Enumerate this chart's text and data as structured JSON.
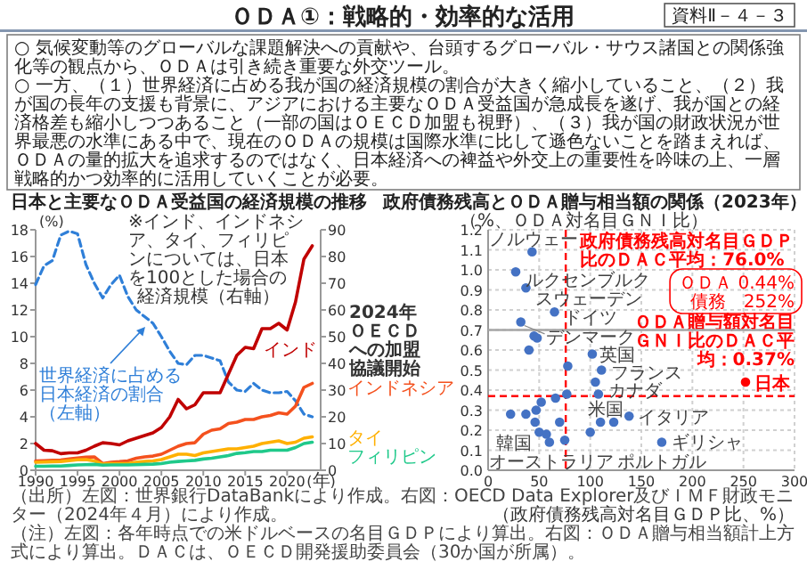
{
  "chart_data": [
    {
      "type": "other",
      "title": "ＯＤＡ①：戦略的・効率的な活用",
      "annotations": [
        "資料Ⅱ－４－３",
        "○ 気候変動等のグローバルな課題解決への貢献や、台頭するグローバル・サウス諸国との関係強化等の観点から、ＯＤＡは引き続き重要な外交ツール。",
        "○ 一方、（１）世界経済に占める我が国の経済規模の割合が大きく縮小していること、（２）我が国の長年の支援も背景に、アジアにおける主要なＯＤＡ受益国が急成長を遂げ、我が国との経済格差も縮小しつつあること（一部の国はＯＥＣＤ加盟も視野）、（３）我が国の財政状況が世界最悪の水準にある中で、現在のＯＤＡの規模は国際水準に比して遜色ないことを踏まえれば、ＯＤＡの量的拡大を追求するのではなく、日本経済への裨益や外交上の重要性を吟味の上、一層戦略的かつ効率的に活用していくことが必要。"
      ]
    },
    {
      "type": "line",
      "title": "日本と主要なＯＤＡ受益国の経済規模の推移",
      "ylabel": "(%)",
      "xlabel": "(年)",
      "x": [
        1990,
        1991,
        1992,
        1993,
        1994,
        1995,
        1996,
        1997,
        1998,
        1999,
        2000,
        2001,
        2002,
        2003,
        2004,
        2005,
        2006,
        2007,
        2008,
        2009,
        2010,
        2011,
        2012,
        2013,
        2014,
        2015,
        2016,
        2017,
        2018,
        2019,
        2020,
        2021,
        2022,
        2023
      ],
      "xlim": [
        1990,
        2024
      ],
      "xticks": [
        1990,
        1995,
        2000,
        2005,
        2010,
        2015,
        2020
      ],
      "ylim": [
        0,
        18
      ],
      "yticks": [
        0,
        2,
        4,
        6,
        8,
        10,
        12,
        14,
        16,
        18
      ],
      "y2lim": [
        0,
        90
      ],
      "y2ticks": [
        0,
        10,
        20,
        30,
        40,
        50,
        60,
        70,
        80,
        90
      ],
      "series": [
        {
          "name": "世界経済に占める日本経済の割合（左軸）",
          "color": "#2f7fd8",
          "line_style": "dashed",
          "values": [
            13.9,
            15.3,
            15.7,
            17.6,
            17.9,
            17.7,
            15.4,
            14.0,
            12.9,
            13.9,
            14.6,
            13.0,
            12.0,
            11.5,
            11.0,
            10.0,
            8.9,
            8.0,
            7.9,
            8.6,
            8.6,
            8.4,
            8.2,
            6.6,
            6.0,
            5.9,
            6.5,
            6.0,
            5.8,
            5.8,
            5.9,
            5.2,
            4.2,
            4.0
          ]
        },
        {
          "name": "インド",
          "color": "#c00000",
          "axis": "y2",
          "values": [
            10,
            7.5,
            7.3,
            6.2,
            6.5,
            6.5,
            7.5,
            9,
            10.3,
            10,
            9.5,
            11,
            12,
            13,
            14,
            16,
            20,
            26.5,
            23,
            24.5,
            29,
            29,
            29,
            36,
            43,
            46,
            45.5,
            53,
            53,
            55,
            52.5,
            63,
            79,
            84
          ]
        },
        {
          "name": "インドネシア",
          "color": "#f4511e",
          "axis": "y2",
          "values": [
            3.5,
            3.6,
            3.7,
            3.8,
            4.2,
            4.6,
            4.9,
            5,
            2.5,
            3,
            3.2,
            3.5,
            4.5,
            5,
            5.3,
            6,
            7.5,
            9,
            10,
            10.3,
            13.5,
            15,
            15.5,
            17.5,
            18,
            19,
            19,
            20,
            20.5,
            21.5,
            21,
            24,
            31,
            32.5
          ]
        },
        {
          "name": "タイ",
          "color": "#ffb000",
          "axis": "y2",
          "values": [
            3,
            3.1,
            3.2,
            3.3,
            3.6,
            3.9,
            4,
            3.5,
            2.3,
            2.5,
            2.5,
            2.5,
            3,
            3.3,
            3.5,
            4,
            5,
            6,
            6,
            5.5,
            6.5,
            7,
            7.5,
            8,
            8,
            8.5,
            9,
            10,
            10.5,
            11,
            10,
            10.5,
            12,
            12.5
          ]
        },
        {
          "name": "フィリピン",
          "color": "#1fc98a",
          "axis": "y2",
          "values": [
            1.5,
            1.5,
            1.6,
            1.6,
            1.8,
            2,
            2.1,
            2.2,
            1.9,
            2,
            2,
            2,
            2.1,
            2.2,
            2.3,
            2.5,
            3,
            3.3,
            3.5,
            3.7,
            4.2,
            4.5,
            5,
            5.5,
            6.3,
            6.6,
            7,
            7,
            7.5,
            7.5,
            7.5,
            8.5,
            10,
            10.5
          ]
        }
      ],
      "annotations": [
        "※インド、インドネシア、タイ、フィリピンについては、日本を100とした場合の経済規模（右軸）",
        "2024年ＯＥＣＤへの加盟協議開始"
      ]
    },
    {
      "type": "scatter",
      "title": "政府債務残高とＯＤＡ贈与相当額の関係（2023年）",
      "xlabel": "（政府債務残高対名目ＧＤＰ比、%）",
      "ylabel": "（%、ＯＤＡ対名目ＧＮＩ比）",
      "xlim": [
        0,
        300
      ],
      "xticks": [
        0,
        50,
        100,
        150,
        200,
        250,
        300
      ],
      "ylim": [
        0,
        1.2
      ],
      "yticks": [
        {
          "value": 0,
          "label": "0.0"
        },
        0.1,
        0.2,
        0.3,
        0.4,
        0.5,
        0.6,
        0.7,
        0.8,
        0.9,
        {
          "value": 1,
          "label": "1.0"
        },
        1.1,
        1.2
      ],
      "grid": true,
      "marker": "circle",
      "series": [
        {
          "color": "#4472c4",
          "x": [
            43,
            27,
            37,
            65,
            32,
            45,
            48,
            40,
            102,
            78,
            111,
            105,
            108,
            77,
            66,
            52,
            47,
            22,
            37,
            46,
            70,
            50,
            57,
            60,
            75,
            100,
            110,
            123,
            138,
            170
          ],
          "values": [
            1.09,
            0.99,
            0.91,
            0.79,
            0.74,
            0.67,
            0.66,
            0.6,
            0.58,
            0.52,
            0.5,
            0.44,
            0.38,
            0.38,
            0.36,
            0.34,
            0.3,
            0.28,
            0.28,
            0.24,
            0.24,
            0.19,
            0.18,
            0.14,
            0.15,
            0.19,
            0.24,
            0.24,
            0.27,
            0.14
          ]
        },
        {
          "name": "日本",
          "color": "#ff0000",
          "x": [
            252
          ],
          "values": [
            0.44
          ]
        }
      ],
      "ref_lines": [
        {
          "axis": "x",
          "value": 76,
          "label": "政府債務残高対名目ＧＤＰ比のＤＡＣ平均：76.0%",
          "color": "#ff0000",
          "line_style": "dashed"
        },
        {
          "axis": "y",
          "value": 0.37,
          "label": "ＯＤＡ贈与額対名目ＧＮＩ比のＤＡＣ平均：0.37%",
          "color": "#ff0000",
          "line_style": "dashed"
        },
        {
          "axis": "y",
          "value": 0.7,
          "color": "#a6a6a6"
        }
      ],
      "annotations": [
        {
          "text": "ノルウェー",
          "x": 43,
          "y": 1.09
        },
        {
          "text": "ルクセンブルク",
          "x": 27,
          "y": 0.99
        },
        {
          "text": "スウェーデン",
          "x": 37,
          "y": 0.91
        },
        {
          "text": "ドイツ",
          "x": 65,
          "y": 0.79
        },
        {
          "text": "デンマーク",
          "x": 32,
          "y": 0.74
        },
        {
          "text": "英国",
          "x": 102,
          "y": 0.58
        },
        {
          "text": "フランス",
          "x": 111,
          "y": 0.5
        },
        {
          "text": "カナダ",
          "x": 108,
          "y": 0.38
        },
        {
          "text": "米国",
          "x": 123,
          "y": 0.24
        },
        {
          "text": "イタリア",
          "x": 138,
          "y": 0.27
        },
        {
          "text": "韓国",
          "x": 57,
          "y": 0.18
        },
        {
          "text": "オーストラリア",
          "x": 50,
          "y": 0.19
        },
        {
          "text": "ポルトガル",
          "x": 100,
          "y": 0.19
        },
        {
          "text": "ギリシャ",
          "x": 170,
          "y": 0.14
        },
        "ＯＤＡ 0.44%債務　252%"
      ]
    },
    {
      "type": "other",
      "annotations": [
        "（出所）左図：世界銀行DataBankにより作成。右図：OECD Data Explorer及びＩＭＦ財政モニター（2024年４月）により作成。",
        "（注）左図：各年時点での米ドルベースの名目ＧＤＰにより算出。右図：ＯＤＡ贈与相当額計上方式により算出。ＤＡＣは、ＯＥＣＤ開発援助委員会（30か国が所属）。"
      ]
    }
  ]
}
